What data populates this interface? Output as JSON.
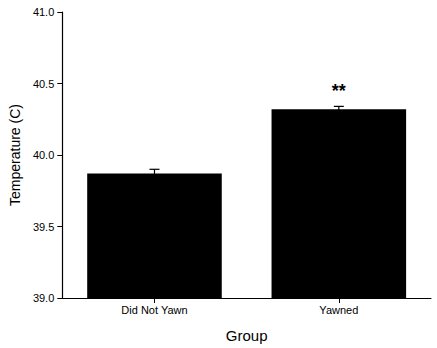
{
  "chart_data": {
    "type": "bar",
    "x_label": "Group",
    "y_label": "Temperature (C)",
    "categories": [
      "Did Not Yawn",
      "Yawned"
    ],
    "values": [
      39.87,
      40.32
    ],
    "errors": [
      0.03,
      0.02
    ],
    "color": "#000000",
    "ylim": [
      39.0,
      41.0
    ],
    "yticks": [
      {
        "value": 39.0,
        "label": "39.0"
      },
      {
        "value": 39.5,
        "label": "39.5"
      },
      {
        "value": 40.0,
        "label": "40.0"
      },
      {
        "value": 40.5,
        "label": "40.5"
      },
      {
        "value": 41.0,
        "label": "41.0"
      }
    ],
    "annotations": [
      {
        "text": "**",
        "category": "Yawned"
      }
    ],
    "grid": false
  }
}
